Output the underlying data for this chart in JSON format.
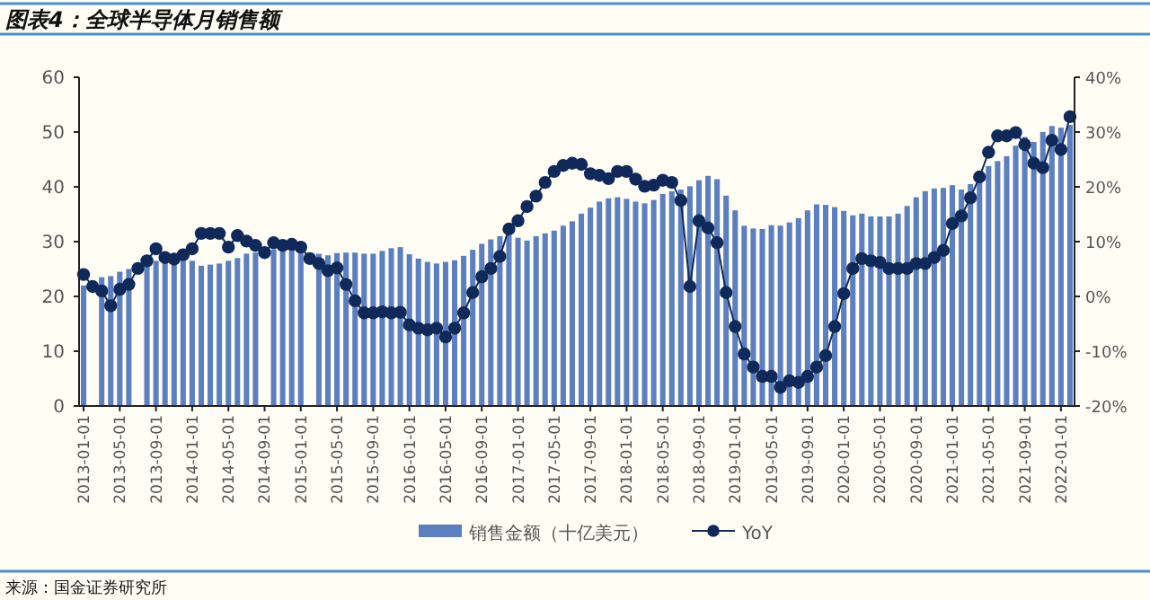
{
  "chart_data": {
    "type": "bar",
    "title": "图表4：全球半导体月销售额",
    "categories": [
      "2013-01-01",
      null,
      null,
      null,
      "2013-05-01",
      null,
      null,
      null,
      "2013-09-01",
      null,
      null,
      null,
      "2014-01-01",
      null,
      null,
      null,
      "2014-05-01",
      null,
      null,
      null,
      "2014-09-01",
      null,
      null,
      null,
      "2015-01-01",
      null,
      null,
      null,
      "2015-05-01",
      null,
      null,
      null,
      "2015-09-01",
      null,
      null,
      null,
      "2016-01-01",
      null,
      null,
      null,
      "2016-05-01",
      null,
      null,
      null,
      "2016-09-01",
      null,
      null,
      null,
      "2017-01-01",
      null,
      null,
      null,
      "2017-05-01",
      null,
      null,
      null,
      "2017-09-01",
      null,
      null,
      null,
      "2018-01-01",
      null,
      null,
      null,
      "2018-05-01",
      null,
      null,
      null,
      "2018-09-01",
      null,
      null,
      null,
      "2019-01-01",
      null,
      null,
      null,
      "2019-05-01",
      null,
      null,
      null,
      "2019-09-01",
      null,
      null,
      null,
      "2020-01-01",
      null,
      null,
      null,
      "2020-05-01",
      null,
      null,
      null,
      "2020-09-01",
      null,
      null,
      null,
      "2021-01-01",
      null,
      null,
      null,
      "2021-05-01",
      null,
      null,
      null,
      "2021-09-01",
      null,
      null,
      null,
      "2022-01-01",
      null
    ],
    "series": [
      {
        "name": "销售金额（十亿美元）",
        "color": "#5b7fbf",
        "values": [
          22,
          null,
          23.5,
          23.7,
          24.5,
          25,
          null,
          26,
          26.5,
          26.8,
          26.5,
          26.5,
          26.5,
          25.6,
          25.8,
          26,
          26.5,
          27,
          27.8,
          28,
          null,
          28.6,
          28.4,
          28.5,
          28,
          null,
          27.8,
          27.5,
          27.9,
          28,
          28,
          27.8,
          27.8,
          28.3,
          28.8,
          29,
          27.7,
          26.9,
          26.3,
          26,
          26.3,
          26.6,
          27.4,
          28.5,
          29.6,
          30.4,
          31,
          31.2,
          30.7,
          30.2,
          31,
          31.5,
          32,
          32.9,
          33.7,
          35.1,
          36.2,
          37.3,
          37.9,
          38.1,
          37.8,
          37.3,
          37,
          37.6,
          38.7,
          39.2,
          39.5,
          40.1,
          41.2,
          42,
          41.4,
          38.4,
          35.7,
          32.9,
          32.4,
          32.3,
          33,
          32.9,
          33.5,
          34.3,
          35.7,
          36.8,
          36.7,
          36.3,
          35.6,
          34.8,
          35.1,
          34.6,
          34.6,
          34.6,
          35.1,
          36.5,
          38.1,
          39.2,
          39.7,
          39.8,
          40.3,
          39.5,
          40.5,
          41.4,
          43.8,
          44.7,
          45.6,
          47.5,
          49.1,
          48.2,
          50,
          51.1,
          50.8,
          51.3
        ]
      },
      {
        "name": "YoY",
        "type": "line",
        "axis": "y2",
        "color": "#0f2a5a",
        "values": [
          4.0,
          1.8,
          1.0,
          -1.7,
          1.3,
          2.2,
          5.1,
          6.5,
          8.7,
          7.1,
          6.8,
          7.6,
          8.7,
          11.5,
          11.5,
          11.5,
          9.0,
          11.1,
          10.1,
          9.3,
          8.0,
          9.8,
          9.3,
          9.5,
          9.0,
          6.9,
          6.0,
          4.7,
          5.2,
          2.2,
          -0.8,
          -3.0,
          -3.0,
          -2.8,
          -3.0,
          -2.9,
          -5.2,
          -5.8,
          -6.1,
          -5.8,
          -7.4,
          -5.8,
          -3.0,
          0.7,
          3.6,
          5.1,
          7.3,
          12.3,
          13.8,
          16.4,
          18.3,
          20.8,
          22.8,
          23.9,
          24.3,
          24.1,
          22.4,
          22.1,
          21.5,
          22.8,
          22.8,
          21.4,
          20.1,
          20.3,
          21.2,
          20.8,
          17.5,
          1.8,
          13.8,
          12.5,
          9.8,
          0.7,
          -5.5,
          -10.5,
          -12.9,
          -14.6,
          -14.6,
          -16.6,
          -15.4,
          -15.7,
          -14.6,
          -12.9,
          -10.8,
          -5.5,
          0.5,
          5.1,
          6.9,
          6.5,
          6.2,
          5.1,
          5.1,
          5.1,
          6.0,
          6.0,
          7.1,
          8.4,
          13.3,
          14.7,
          18.0,
          21.8,
          26.3,
          29.3,
          29.3,
          29.9,
          27.7,
          24.3,
          23.5,
          28.5,
          26.8,
          32.8
        ]
      }
    ],
    "ylim": [
      0,
      60
    ],
    "yticks": [
      0,
      10,
      20,
      30,
      40,
      50,
      60
    ],
    "y2lim": [
      -20,
      40
    ],
    "y2ticks": [
      {
        "value": -20,
        "label": "-20%"
      },
      {
        "value": -10,
        "label": "-10%"
      },
      {
        "value": 0,
        "label": "0%"
      },
      {
        "value": 10,
        "label": "10%"
      },
      {
        "value": 20,
        "label": "20%"
      },
      {
        "value": 30,
        "label": "30%"
      },
      {
        "value": 40,
        "label": "40%"
      }
    ],
    "legend": "bottom",
    "marker": "circle",
    "annotations": [
      "来源：国金证券研究所"
    ]
  }
}
